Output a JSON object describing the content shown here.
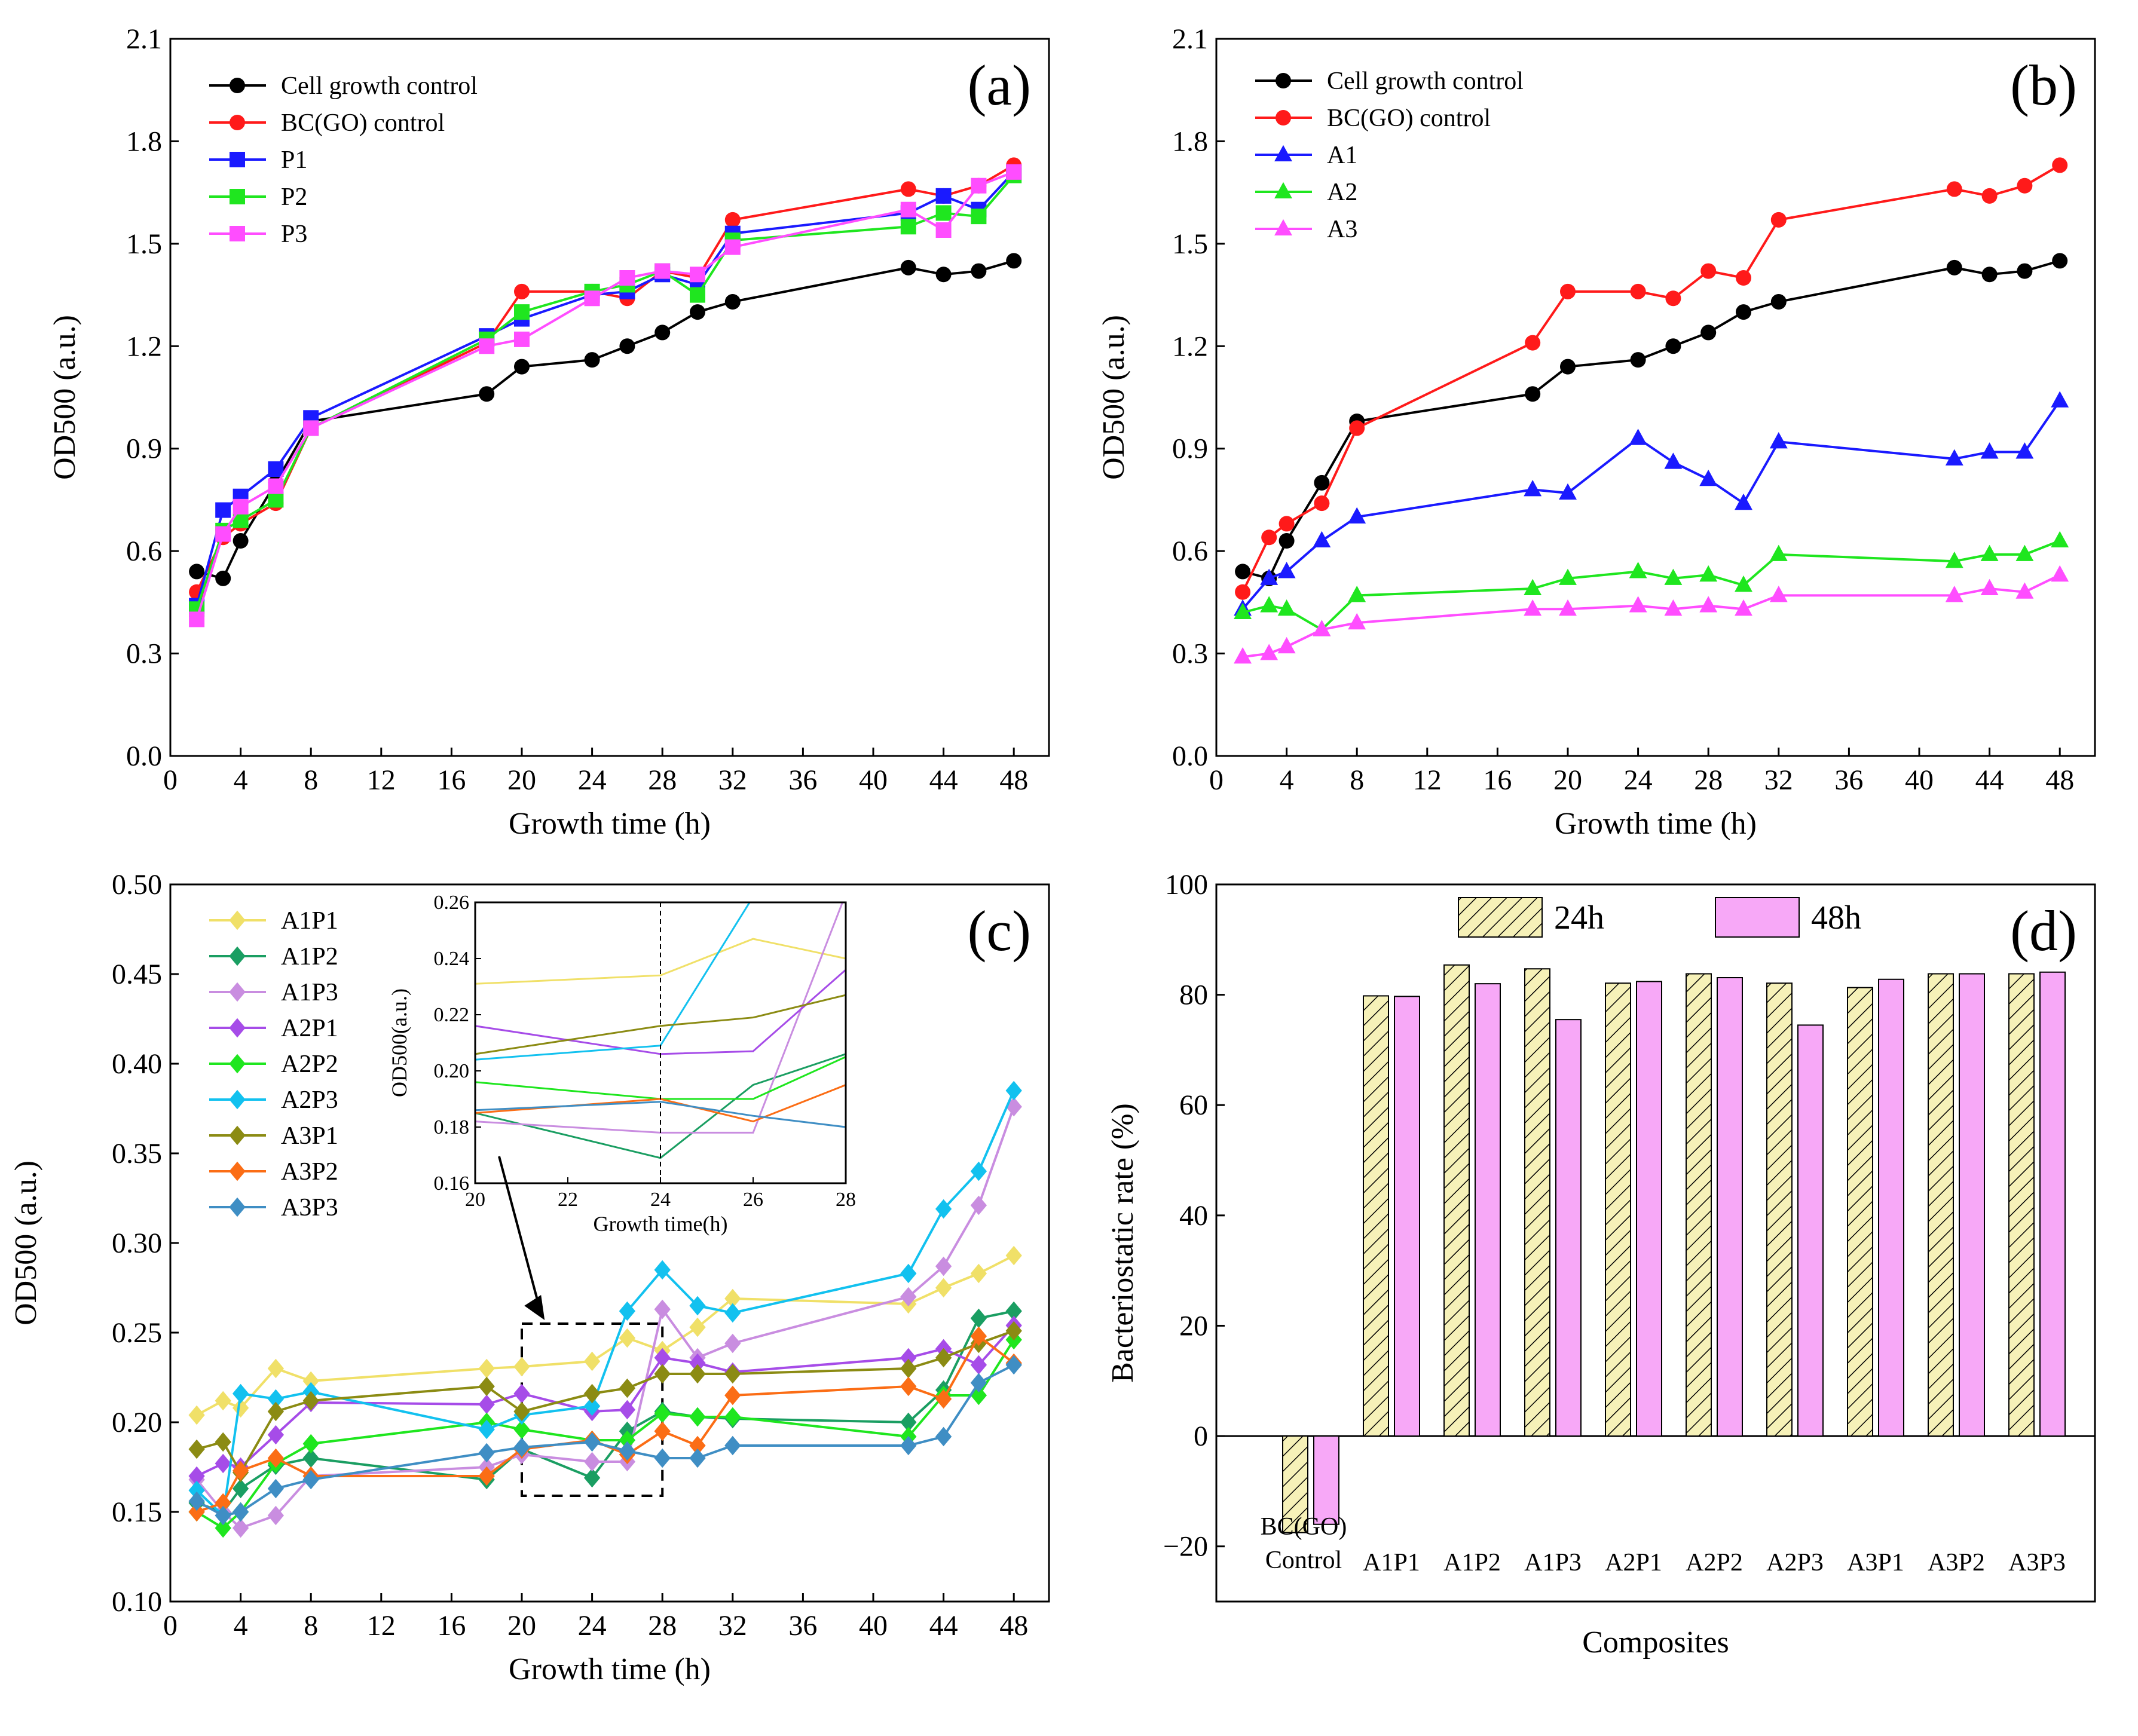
{
  "colors": {
    "black": "#000000",
    "red": "#ff1a1a",
    "blue": "#1a1aff",
    "green": "#1fe61f",
    "magenta": "#ff4dff",
    "A1P1": "#f0e068",
    "A1P2": "#1a9e62",
    "A1P3": "#c98de0",
    "A2P1": "#a64ce8",
    "A2P2": "#1fe61f",
    "A2P3": "#12c1ef",
    "A3P1": "#8b8b13",
    "A3P2": "#fb6d15",
    "A3P3": "#3f8ec4",
    "bar24": "#f6f1b8",
    "bar48": "#f7a8f7"
  },
  "chart_data": [
    {
      "id": "a",
      "panel_label": "(a)",
      "type": "line",
      "xlabel": "Growth time (h)",
      "ylabel": "OD500 (a.u.)",
      "xlim": [
        0,
        50
      ],
      "ylim": [
        0.0,
        2.1
      ],
      "xticks": [
        "0",
        "4",
        "8",
        "12",
        "16",
        "20",
        "24",
        "28",
        "32",
        "36",
        "40",
        "44",
        "48"
      ],
      "yticks": [
        "0.0",
        "0.3",
        "0.6",
        "0.9",
        "1.2",
        "1.5",
        "1.8",
        "2.1"
      ],
      "legend_position": "top-left",
      "x": [
        1.5,
        3,
        4,
        6,
        8,
        18,
        20,
        24,
        26,
        28,
        30,
        32,
        42,
        44,
        46,
        48
      ],
      "series": [
        {
          "name": "Cell growth control",
          "color": "black",
          "marker": "circle",
          "values": [
            0.54,
            0.52,
            0.63,
            0.8,
            0.98,
            1.06,
            1.14,
            1.16,
            1.2,
            1.24,
            1.3,
            1.33,
            1.43,
            1.41,
            1.42,
            1.45
          ]
        },
        {
          "name": "BC(GO) control",
          "color": "red",
          "marker": "circle",
          "values": [
            0.48,
            0.64,
            0.68,
            0.74,
            0.96,
            1.21,
            1.36,
            1.36,
            1.34,
            1.42,
            1.4,
            1.57,
            1.66,
            1.64,
            1.67,
            1.73
          ]
        },
        {
          "name": "P1",
          "color": "blue",
          "marker": "square",
          "values": [
            0.44,
            0.72,
            0.76,
            0.84,
            0.99,
            1.23,
            1.28,
            1.35,
            1.36,
            1.41,
            1.38,
            1.53,
            1.59,
            1.64,
            1.6,
            1.71
          ]
        },
        {
          "name": "P2",
          "color": "green",
          "marker": "square",
          "values": [
            0.43,
            0.66,
            0.69,
            0.75,
            0.96,
            1.22,
            1.3,
            1.36,
            1.38,
            1.42,
            1.35,
            1.51,
            1.55,
            1.59,
            1.58,
            1.7
          ]
        },
        {
          "name": "P3",
          "color": "magenta",
          "marker": "square",
          "values": [
            0.4,
            0.65,
            0.73,
            0.79,
            0.96,
            1.2,
            1.22,
            1.34,
            1.4,
            1.42,
            1.41,
            1.49,
            1.6,
            1.54,
            1.67,
            1.71
          ]
        }
      ]
    },
    {
      "id": "b",
      "panel_label": "(b)",
      "type": "line",
      "xlabel": "Growth time (h)",
      "ylabel": "OD500 (a.u.)",
      "xlim": [
        0,
        50
      ],
      "ylim": [
        0.0,
        2.1
      ],
      "xticks": [
        "0",
        "4",
        "8",
        "12",
        "16",
        "20",
        "24",
        "28",
        "32",
        "36",
        "40",
        "44",
        "48"
      ],
      "yticks": [
        "0.0",
        "0.3",
        "0.6",
        "0.9",
        "1.2",
        "1.5",
        "1.8",
        "2.1"
      ],
      "legend_position": "top-left",
      "x": [
        1.5,
        3,
        4,
        6,
        8,
        18,
        20,
        24,
        26,
        28,
        30,
        32,
        42,
        44,
        46,
        48
      ],
      "series": [
        {
          "name": "Cell growth control",
          "color": "black",
          "marker": "circle",
          "values": [
            0.54,
            0.52,
            0.63,
            0.8,
            0.98,
            1.06,
            1.14,
            1.16,
            1.2,
            1.24,
            1.3,
            1.33,
            1.43,
            1.41,
            1.42,
            1.45
          ]
        },
        {
          "name": "BC(GO) control",
          "color": "red",
          "marker": "circle",
          "values": [
            0.48,
            0.64,
            0.68,
            0.74,
            0.96,
            1.21,
            1.36,
            1.36,
            1.34,
            1.42,
            1.4,
            1.57,
            1.66,
            1.64,
            1.67,
            1.73
          ]
        },
        {
          "name": "A1",
          "color": "blue",
          "marker": "triangle",
          "values": [
            0.43,
            0.52,
            0.54,
            0.63,
            0.7,
            0.78,
            0.77,
            0.93,
            0.86,
            0.81,
            0.74,
            0.92,
            0.87,
            0.89,
            0.89,
            1.04
          ]
        },
        {
          "name": "A2",
          "color": "green",
          "marker": "triangle",
          "values": [
            0.42,
            0.44,
            0.43,
            0.37,
            0.47,
            0.49,
            0.52,
            0.54,
            0.52,
            0.53,
            0.5,
            0.59,
            0.57,
            0.59,
            0.59,
            0.63
          ]
        },
        {
          "name": "A3",
          "color": "magenta",
          "marker": "triangle",
          "values": [
            0.29,
            0.3,
            0.32,
            0.37,
            0.39,
            0.43,
            0.43,
            0.44,
            0.43,
            0.44,
            0.43,
            0.47,
            0.47,
            0.49,
            0.48,
            0.53
          ]
        }
      ]
    },
    {
      "id": "c",
      "panel_label": "(c)",
      "type": "line",
      "xlabel": "Growth time (h)",
      "ylabel": "OD500 (a.u.)",
      "xlim": [
        0,
        50
      ],
      "ylim": [
        0.1,
        0.5
      ],
      "xticks": [
        "0",
        "4",
        "8",
        "12",
        "16",
        "20",
        "24",
        "28",
        "32",
        "36",
        "40",
        "44",
        "48"
      ],
      "yticks": [
        "0.10",
        "0.15",
        "0.20",
        "0.25",
        "0.30",
        "0.35",
        "0.40",
        "0.45",
        "0.50"
      ],
      "legend_position": "top-left",
      "x": [
        1.5,
        3,
        4,
        6,
        8,
        18,
        20,
        24,
        26,
        28,
        30,
        32,
        42,
        44,
        46,
        48
      ],
      "series": [
        {
          "name": "A1P1",
          "color": "A1P1",
          "marker": "diamond",
          "values": [
            0.204,
            0.212,
            0.208,
            0.23,
            0.223,
            0.23,
            0.231,
            0.234,
            0.247,
            0.24,
            0.253,
            0.269,
            0.266,
            0.275,
            0.283,
            0.293
          ]
        },
        {
          "name": "A1P2",
          "color": "A1P2",
          "marker": "diamond",
          "values": [
            0.155,
            0.15,
            0.163,
            0.176,
            0.18,
            0.168,
            0.185,
            0.169,
            0.195,
            0.206,
            0.203,
            0.202,
            0.2,
            0.218,
            0.258,
            0.262
          ]
        },
        {
          "name": "A1P3",
          "color": "A1P3",
          "marker": "diamond",
          "values": [
            0.168,
            0.15,
            0.141,
            0.148,
            0.17,
            0.175,
            0.182,
            0.178,
            0.178,
            0.263,
            0.236,
            0.244,
            0.27,
            0.287,
            0.321,
            0.376
          ]
        },
        {
          "name": "A2P1",
          "color": "A2P1",
          "marker": "diamond",
          "values": [
            0.17,
            0.177,
            0.175,
            0.193,
            0.211,
            0.21,
            0.216,
            0.206,
            0.207,
            0.236,
            0.233,
            0.228,
            0.236,
            0.241,
            0.232,
            0.254
          ]
        },
        {
          "name": "A2P2",
          "color": "A2P2",
          "marker": "diamond",
          "values": [
            0.15,
            0.141,
            0.15,
            0.177,
            0.188,
            0.2,
            0.196,
            0.19,
            0.19,
            0.205,
            0.203,
            0.203,
            0.192,
            0.215,
            0.215,
            0.246
          ]
        },
        {
          "name": "A2P3",
          "color": "A2P3",
          "marker": "diamond",
          "values": [
            0.162,
            0.148,
            0.216,
            0.213,
            0.217,
            0.196,
            0.204,
            0.209,
            0.262,
            0.285,
            0.265,
            0.261,
            0.283,
            0.319,
            0.34,
            0.385
          ]
        },
        {
          "name": "A3P1",
          "color": "A3P1",
          "marker": "diamond",
          "values": [
            0.185,
            0.189,
            0.172,
            0.206,
            0.212,
            0.22,
            0.206,
            0.216,
            0.219,
            0.227,
            0.227,
            0.227,
            0.23,
            0.236,
            0.244,
            0.251
          ]
        },
        {
          "name": "A3P2",
          "color": "A3P2",
          "marker": "diamond",
          "values": [
            0.15,
            0.155,
            0.173,
            0.18,
            0.17,
            0.17,
            0.185,
            0.19,
            0.182,
            0.195,
            0.187,
            0.215,
            0.22,
            0.213,
            0.248,
            0.233
          ]
        },
        {
          "name": "A3P3",
          "color": "A3P3",
          "marker": "diamond",
          "values": [
            0.156,
            0.148,
            0.15,
            0.163,
            0.168,
            0.183,
            0.186,
            0.189,
            0.184,
            0.18,
            0.18,
            0.187,
            0.187,
            0.192,
            0.222,
            0.232
          ]
        }
      ],
      "highlight_box": {
        "xlim": [
          20,
          28
        ],
        "ylim": [
          0.159,
          0.255
        ]
      },
      "inset": {
        "xlabel": "Growth time(h)",
        "ylabel": "OD500(a.u.)",
        "xlim": [
          20,
          28
        ],
        "ylim": [
          0.16,
          0.26
        ],
        "xticks": [
          "20",
          "22",
          "24",
          "26",
          "28"
        ],
        "yticks": [
          "0.16",
          "0.18",
          "0.20",
          "0.22",
          "0.24",
          "0.26"
        ],
        "dashed_x": 24
      }
    },
    {
      "id": "d",
      "panel_label": "(d)",
      "type": "bar",
      "xlabel": "Composites",
      "ylabel": "Bacteriostatic rate (%)",
      "ylim": [
        -30,
        100
      ],
      "yticks": [
        "−20",
        "0",
        "20",
        "40",
        "60",
        "80",
        "100"
      ],
      "categories": [
        "BC(GO) Control",
        "A1P1",
        "A1P2",
        "A1P3",
        "A2P1",
        "A2P2",
        "A2P3",
        "A3P1",
        "A3P2",
        "A3P3"
      ],
      "category_lines": [
        [
          "BC(GO)",
          "Control"
        ],
        [
          "A1P1"
        ],
        [
          "A1P2"
        ],
        [
          "A1P3"
        ],
        [
          "A2P1"
        ],
        [
          "A2P2"
        ],
        [
          "A2P3"
        ],
        [
          "A3P1"
        ],
        [
          "A3P2"
        ],
        [
          "A3P3"
        ]
      ],
      "legend_position": "top",
      "series": [
        {
          "name": "24h",
          "pattern": "hatched",
          "color": "bar24",
          "values": [
            -17.5,
            79.8,
            85.4,
            84.7,
            82.1,
            83.8,
            82.1,
            81.3,
            83.8,
            83.8
          ]
        },
        {
          "name": "48h",
          "pattern": "solid",
          "color": "bar48",
          "values": [
            -16.0,
            79.7,
            82.0,
            75.5,
            82.4,
            83.1,
            74.5,
            82.8,
            83.8,
            84.1
          ]
        }
      ]
    }
  ]
}
